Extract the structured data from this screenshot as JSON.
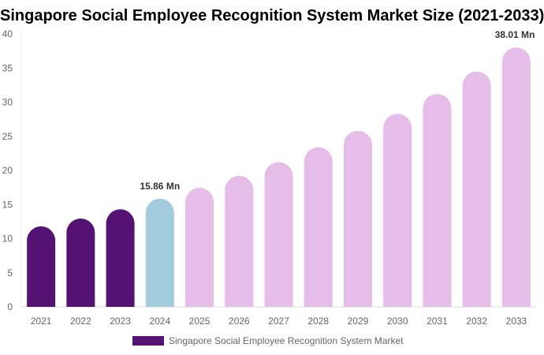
{
  "chart_data": {
    "type": "bar",
    "title": "Singapore Social Employee Recognition System Market Size (2021-2033)",
    "categories": [
      "2021",
      "2022",
      "2023",
      "2024",
      "2025",
      "2026",
      "2027",
      "2028",
      "2029",
      "2030",
      "2031",
      "2032",
      "2033"
    ],
    "series": [
      {
        "name": "Singapore Social Employee Recognition System Market",
        "values": [
          11.8,
          12.95,
          14.3,
          15.86,
          17.45,
          19.2,
          21.2,
          23.4,
          25.8,
          28.3,
          31.2,
          34.5,
          38.01
        ]
      }
    ],
    "bar_colors": [
      "#541372",
      "#541372",
      "#541372",
      "#a3cbde",
      "#e6bde8",
      "#e6bde8",
      "#e6bde8",
      "#e6bde8",
      "#e6bde8",
      "#e6bde8",
      "#e6bde8",
      "#e6bde8",
      "#e6bde8"
    ],
    "data_labels": {
      "3": "15.86 Mn",
      "12": "38.01 Mn"
    },
    "ylim": [
      0,
      40
    ],
    "yticks": [
      0,
      5,
      10,
      15,
      20,
      25,
      30,
      35,
      40
    ],
    "grid": false,
    "legend": "bottom",
    "legend_color": "#541372"
  }
}
